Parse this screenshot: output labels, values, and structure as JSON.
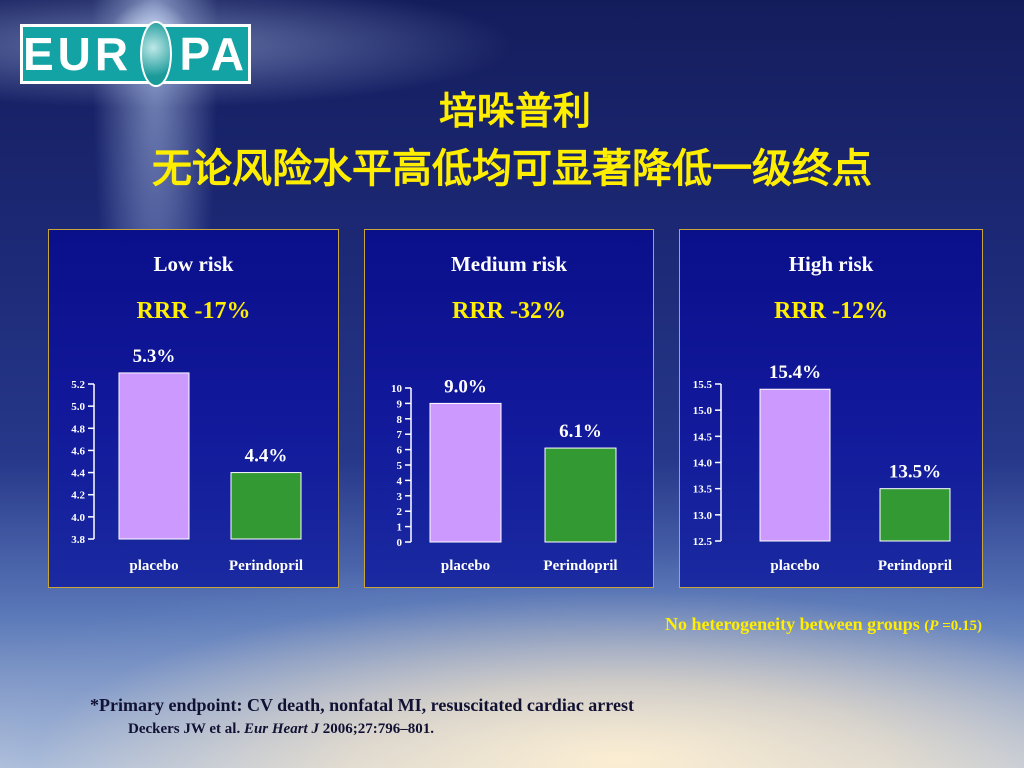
{
  "logo": {
    "left": "EUR",
    "right": "PA"
  },
  "title": {
    "line1": "培哚普利",
    "line2": "无论风险水平高低均可显著降低一级终点"
  },
  "chart_data": [
    {
      "type": "bar",
      "title": "Low risk",
      "subtitle": "RRR -17%",
      "categories": [
        "placebo",
        "Perindopril"
      ],
      "values": [
        5.3,
        4.4
      ],
      "data_labels": [
        "5.3%",
        "4.4%"
      ],
      "colors": [
        "#cc99ff",
        "#339933"
      ],
      "ylim": [
        3.8,
        5.2
      ],
      "yticks": [
        "3.8",
        "4.0",
        "4.2",
        "4.4",
        "4.6",
        "4.8",
        "5.0",
        "5.2"
      ],
      "ytick_values": [
        3.8,
        4.0,
        4.2,
        4.4,
        4.6,
        4.8,
        5.0,
        5.2
      ]
    },
    {
      "type": "bar",
      "title": "Medium risk",
      "subtitle": "RRR -32%",
      "categories": [
        "placebo",
        "Perindopril"
      ],
      "values": [
        9.0,
        6.1
      ],
      "data_labels": [
        "9.0%",
        "6.1%"
      ],
      "colors": [
        "#cc99ff",
        "#339933"
      ],
      "ylim": [
        0,
        10
      ],
      "yticks": [
        "0",
        "1",
        "2",
        "3",
        "4",
        "5",
        "6",
        "7",
        "8",
        "9",
        "10"
      ],
      "ytick_values": [
        0,
        1,
        2,
        3,
        4,
        5,
        6,
        7,
        8,
        9,
        10
      ]
    },
    {
      "type": "bar",
      "title": "High risk",
      "subtitle": "RRR -12%",
      "categories": [
        "placebo",
        "Perindopril"
      ],
      "values": [
        15.4,
        13.5
      ],
      "data_labels": [
        "15.4%",
        "13.5%"
      ],
      "colors": [
        "#cc99ff",
        "#339933"
      ],
      "ylim": [
        12.5,
        15.5
      ],
      "yticks": [
        "12.5",
        "13.0",
        "13.5",
        "14.0",
        "14.5",
        "15.0",
        "15.5"
      ],
      "ytick_values": [
        12.5,
        13.0,
        13.5,
        14.0,
        14.5,
        15.0,
        15.5
      ]
    }
  ],
  "footnotes": {
    "heterogeneity": "No heterogeneity between groups",
    "p_open": "(",
    "p_italic": "P",
    "p_value": " =0.15)",
    "primary_endpoint": "*Primary endpoint: CV death, nonfatal MI, resuscitated cardiac arrest",
    "ref_authors": "Deckers JW et al. ",
    "ref_journal": "Eur Heart J",
    "ref_rest": " 2006;27:796–801."
  }
}
